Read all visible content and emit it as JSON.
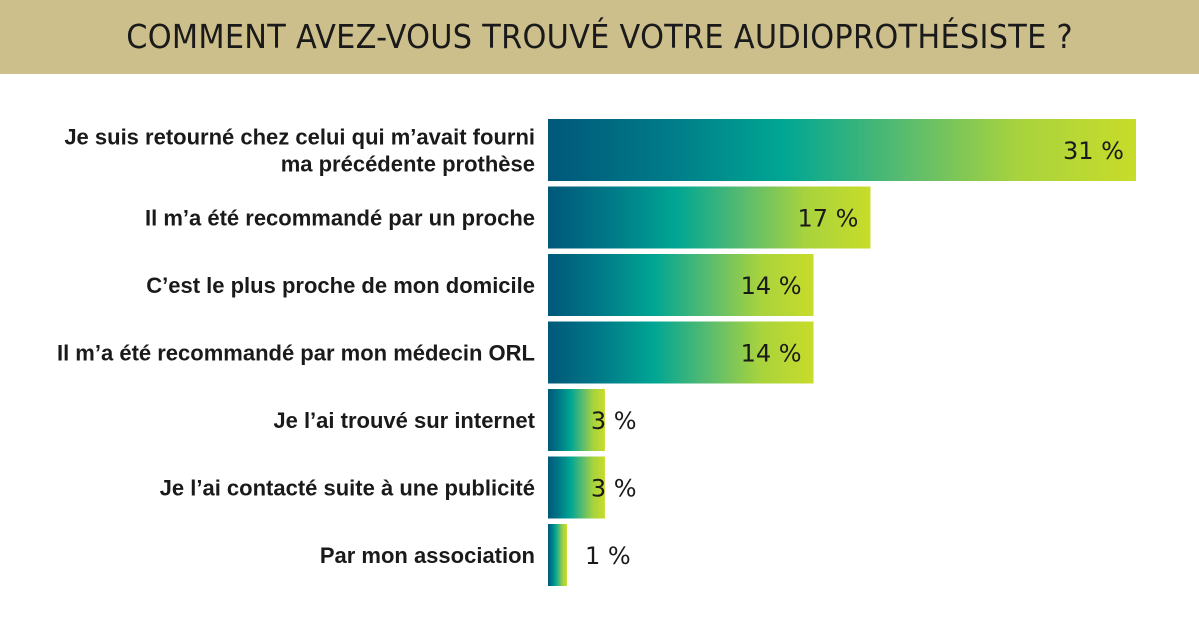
{
  "header": {
    "title": "COMMENT AVEZ-VOUS TROUVÉ VOTRE AUDIOPROTHÉSISTE ?"
  },
  "colors": {
    "header_bg": "#cdbf8c",
    "gradient": [
      "#00587a",
      "#007a88",
      "#00a693",
      "#56bb70",
      "#a8d33d",
      "#c8dc2a"
    ]
  },
  "chart_data": {
    "type": "bar",
    "orientation": "horizontal",
    "title": "COMMENT AVEZ-VOUS TROUVÉ VOTRE AUDIOPROTHÉSISTE ?",
    "xlabel": "",
    "ylabel": "",
    "unit": "%",
    "grid": false,
    "legend": "none",
    "xlim": [
      0,
      31
    ],
    "categories": [
      [
        "Je suis retourné chez celui qui m’avait fourni",
        "ma précédente prothèse"
      ],
      [
        "Il m’a été recommandé par un proche"
      ],
      [
        "C’est le plus proche de mon domicile"
      ],
      [
        "Il m’a été recommandé par mon médecin ORL"
      ],
      [
        "Je l’ai trouvé sur internet"
      ],
      [
        "Je l’ai contacté suite à une publicité"
      ],
      [
        "Par mon association"
      ]
    ],
    "values": [
      31,
      17,
      14,
      14,
      3,
      3,
      1
    ],
    "value_labels": [
      "31 %",
      "17 %",
      "14 %",
      "14 %",
      "3 %",
      "3 %",
      "1 %"
    ]
  }
}
